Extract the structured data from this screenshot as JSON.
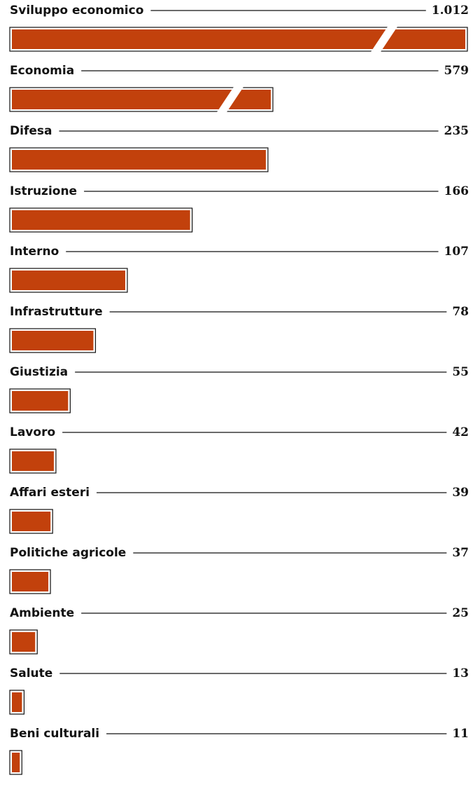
{
  "chart_data": {
    "type": "bar",
    "orientation": "horizontal",
    "categories": [
      "Sviluppo economico",
      "Economia",
      "Difesa",
      "Istruzione",
      "Interno",
      "Infrastrutture",
      "Giustizia",
      "Lavoro",
      "Affari esteri",
      "Politiche agricole",
      "Ambiente",
      "Salute",
      "Beni culturali"
    ],
    "values": [
      1012,
      579,
      235,
      166,
      107,
      78,
      55,
      42,
      39,
      37,
      25,
      13,
      11
    ],
    "value_labels": [
      "1.012",
      "579",
      "235",
      "166",
      "107",
      "78",
      "55",
      "42",
      "39",
      "37",
      "25",
      "13",
      "11"
    ],
    "broken_bars": [
      "Sviluppo economico",
      "Economia"
    ],
    "bar_color": "#c2410c",
    "grid": false,
    "legend": false
  }
}
